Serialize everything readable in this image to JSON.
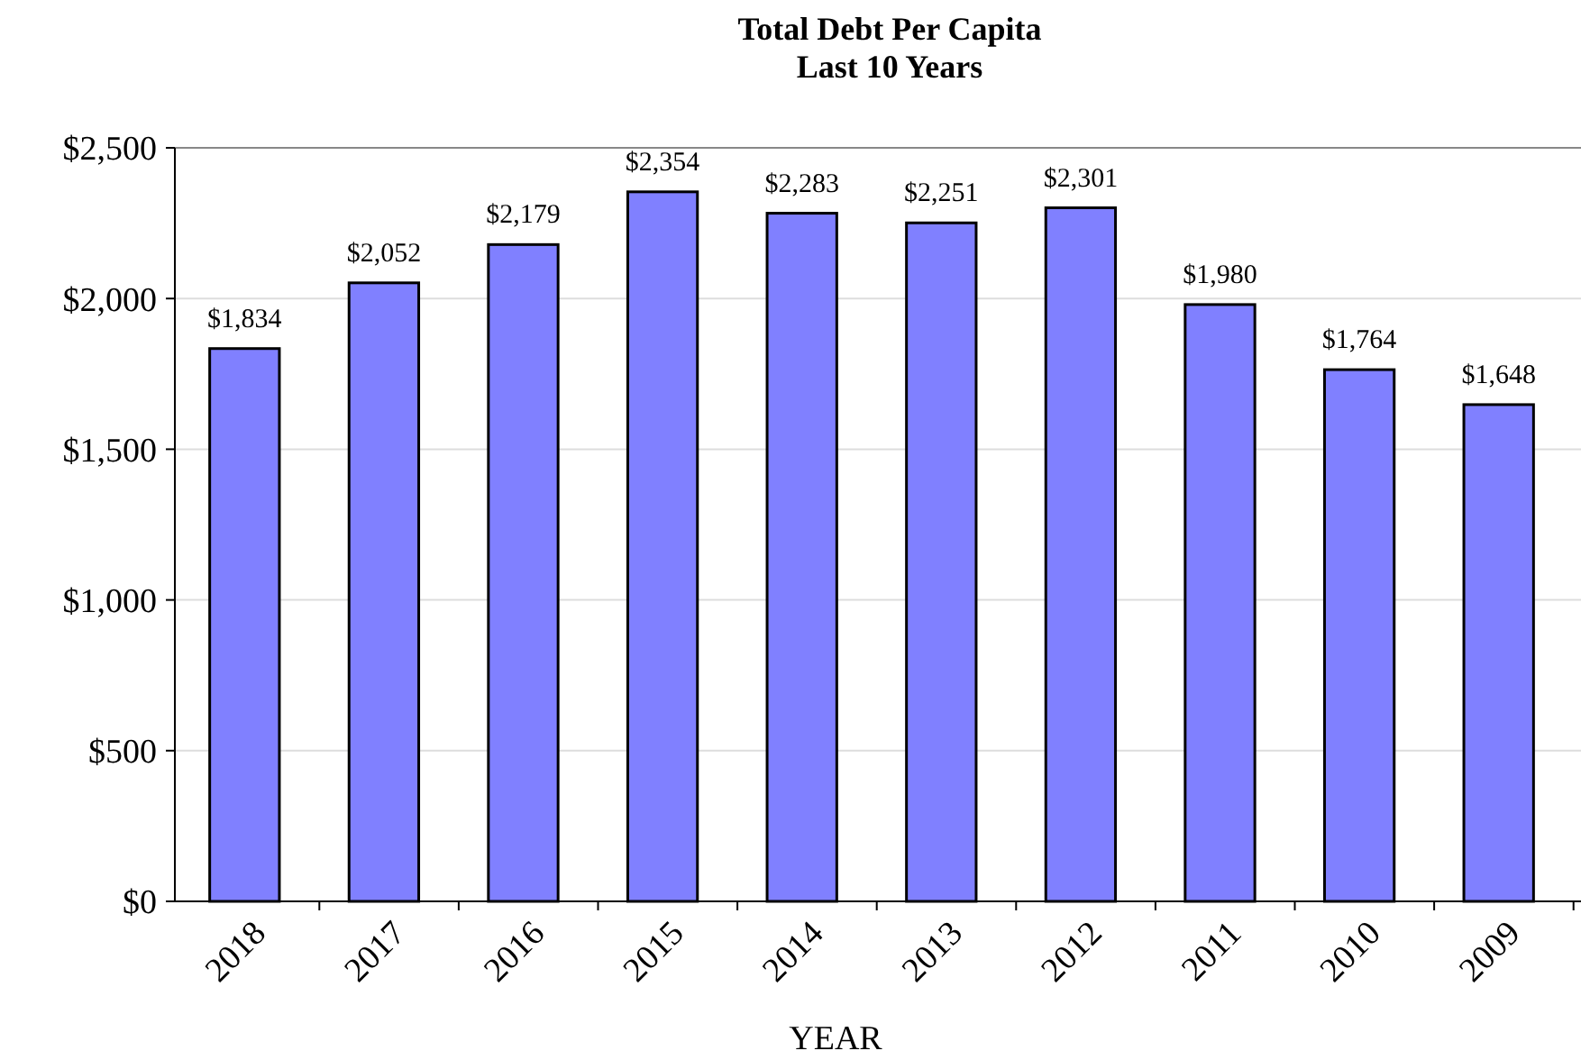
{
  "chart_data": {
    "type": "bar",
    "title": "Total Debt Per Capita\nLast 10 Years",
    "xlabel": "YEAR",
    "categories": [
      "2018",
      "2017",
      "2016",
      "2015",
      "2014",
      "2013",
      "2012",
      "2011",
      "2010",
      "2009"
    ],
    "values": [
      1834,
      2052,
      2179,
      2354,
      2283,
      2251,
      2301,
      1980,
      1764,
      1648
    ],
    "value_labels": [
      "$1,834",
      "$2,052",
      "$2,179",
      "$2,354",
      "$2,283",
      "$2,251",
      "$2,301",
      "$1,980",
      "$1,764",
      "$1,648"
    ],
    "color": "#8080ff",
    "ylim": [
      0,
      2500
    ],
    "yticks": [
      {
        "value": 0,
        "label": "$0"
      },
      {
        "value": 500,
        "label": "$500"
      },
      {
        "value": 1000,
        "label": "$1,000"
      },
      {
        "value": 1500,
        "label": "$1,500"
      },
      {
        "value": 2000,
        "label": "$2,000"
      },
      {
        "value": 2500,
        "label": "$2,500"
      }
    ],
    "grid": "y"
  }
}
